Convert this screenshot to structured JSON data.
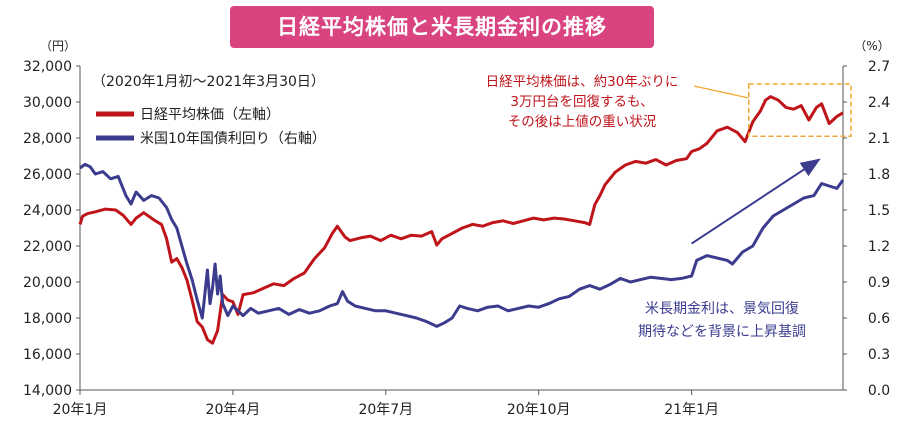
{
  "chart_data": {
    "type": "line",
    "title": "日経平均株価と米長期金利の推移",
    "subtitle": "（2020年1月初～2021年3月30日）",
    "left_unit": "（円）",
    "right_unit": "（%）",
    "left_ylim": [
      14000,
      32000
    ],
    "left_ticks": [
      "14,000",
      "16,000",
      "18,000",
      "20,000",
      "22,000",
      "24,000",
      "26,000",
      "28,000",
      "30,000",
      "32,000"
    ],
    "right_ylim": [
      0.0,
      2.7
    ],
    "right_ticks": [
      "0.0",
      "0.3",
      "0.6",
      "0.9",
      "1.2",
      "1.5",
      "1.8",
      "2.1",
      "2.4",
      "2.7"
    ],
    "x_labels": [
      "20年1月",
      "20年4月",
      "20年7月",
      "20年10月",
      "21年1月"
    ],
    "x_label_months": [
      0,
      3,
      6,
      9,
      12
    ],
    "x_max_month": 14.97,
    "grid": false,
    "legend_position": "top-left",
    "series": [
      {
        "name": "日経平均株価（左軸）",
        "axis": "left",
        "color": "#c0141b",
        "points": [
          [
            0.0,
            23200
          ],
          [
            0.05,
            23650
          ],
          [
            0.15,
            23800
          ],
          [
            0.3,
            23900
          ],
          [
            0.5,
            24050
          ],
          [
            0.7,
            24000
          ],
          [
            0.85,
            23700
          ],
          [
            1.0,
            23200
          ],
          [
            1.1,
            23550
          ],
          [
            1.25,
            23850
          ],
          [
            1.45,
            23450
          ],
          [
            1.6,
            23200
          ],
          [
            1.7,
            22400
          ],
          [
            1.8,
            21100
          ],
          [
            1.9,
            21300
          ],
          [
            2.0,
            20800
          ],
          [
            2.1,
            20100
          ],
          [
            2.2,
            19000
          ],
          [
            2.3,
            17800
          ],
          [
            2.4,
            17500
          ],
          [
            2.5,
            16800
          ],
          [
            2.6,
            16600
          ],
          [
            2.7,
            17300
          ],
          [
            2.8,
            19300
          ],
          [
            2.9,
            19000
          ],
          [
            3.0,
            18900
          ],
          [
            3.1,
            18200
          ],
          [
            3.2,
            19300
          ],
          [
            3.4,
            19400
          ],
          [
            3.6,
            19650
          ],
          [
            3.8,
            19900
          ],
          [
            4.0,
            19800
          ],
          [
            4.2,
            20200
          ],
          [
            4.4,
            20500
          ],
          [
            4.6,
            21300
          ],
          [
            4.8,
            21900
          ],
          [
            4.95,
            22700
          ],
          [
            5.05,
            23100
          ],
          [
            5.2,
            22500
          ],
          [
            5.3,
            22300
          ],
          [
            5.5,
            22450
          ],
          [
            5.7,
            22550
          ],
          [
            5.9,
            22300
          ],
          [
            6.1,
            22600
          ],
          [
            6.3,
            22400
          ],
          [
            6.5,
            22600
          ],
          [
            6.7,
            22550
          ],
          [
            6.9,
            22800
          ],
          [
            7.0,
            22050
          ],
          [
            7.1,
            22400
          ],
          [
            7.3,
            22700
          ],
          [
            7.5,
            23000
          ],
          [
            7.7,
            23200
          ],
          [
            7.9,
            23100
          ],
          [
            8.1,
            23300
          ],
          [
            8.3,
            23400
          ],
          [
            8.5,
            23250
          ],
          [
            8.7,
            23400
          ],
          [
            8.9,
            23550
          ],
          [
            9.1,
            23450
          ],
          [
            9.3,
            23550
          ],
          [
            9.5,
            23500
          ],
          [
            9.7,
            23400
          ],
          [
            9.9,
            23300
          ],
          [
            10.0,
            23200
          ],
          [
            10.1,
            24300
          ],
          [
            10.2,
            24800
          ],
          [
            10.3,
            25400
          ],
          [
            10.5,
            26100
          ],
          [
            10.7,
            26500
          ],
          [
            10.9,
            26700
          ],
          [
            11.1,
            26600
          ],
          [
            11.3,
            26800
          ],
          [
            11.5,
            26500
          ],
          [
            11.7,
            26750
          ],
          [
            11.9,
            26850
          ],
          [
            12.0,
            27250
          ],
          [
            12.15,
            27400
          ],
          [
            12.3,
            27700
          ],
          [
            12.5,
            28400
          ],
          [
            12.7,
            28600
          ],
          [
            12.9,
            28300
          ],
          [
            13.05,
            27800
          ],
          [
            13.2,
            28900
          ],
          [
            13.35,
            29500
          ],
          [
            13.45,
            30100
          ],
          [
            13.55,
            30300
          ],
          [
            13.7,
            30100
          ],
          [
            13.85,
            29700
          ],
          [
            14.0,
            29600
          ],
          [
            14.15,
            29800
          ],
          [
            14.3,
            29000
          ],
          [
            14.45,
            29700
          ],
          [
            14.55,
            29900
          ],
          [
            14.7,
            28800
          ],
          [
            14.85,
            29200
          ],
          [
            14.97,
            29400
          ]
        ]
      },
      {
        "name": "米国10年国債利回り（右軸）",
        "axis": "right",
        "color": "#3b3c8e",
        "points": [
          [
            0.0,
            1.85
          ],
          [
            0.1,
            1.88
          ],
          [
            0.2,
            1.86
          ],
          [
            0.3,
            1.8
          ],
          [
            0.45,
            1.82
          ],
          [
            0.6,
            1.76
          ],
          [
            0.75,
            1.78
          ],
          [
            0.9,
            1.62
          ],
          [
            1.0,
            1.55
          ],
          [
            1.1,
            1.65
          ],
          [
            1.25,
            1.58
          ],
          [
            1.4,
            1.62
          ],
          [
            1.55,
            1.6
          ],
          [
            1.7,
            1.52
          ],
          [
            1.8,
            1.42
          ],
          [
            1.9,
            1.35
          ],
          [
            2.0,
            1.2
          ],
          [
            2.1,
            1.05
          ],
          [
            2.2,
            0.92
          ],
          [
            2.3,
            0.75
          ],
          [
            2.4,
            0.6
          ],
          [
            2.5,
            1.0
          ],
          [
            2.55,
            0.72
          ],
          [
            2.6,
            0.85
          ],
          [
            2.65,
            1.05
          ],
          [
            2.7,
            0.8
          ],
          [
            2.75,
            0.95
          ],
          [
            2.8,
            0.72
          ],
          [
            2.9,
            0.62
          ],
          [
            3.0,
            0.7
          ],
          [
            3.1,
            0.66
          ],
          [
            3.2,
            0.62
          ],
          [
            3.35,
            0.68
          ],
          [
            3.5,
            0.64
          ],
          [
            3.7,
            0.66
          ],
          [
            3.9,
            0.68
          ],
          [
            4.1,
            0.63
          ],
          [
            4.3,
            0.67
          ],
          [
            4.5,
            0.64
          ],
          [
            4.7,
            0.66
          ],
          [
            4.9,
            0.7
          ],
          [
            5.05,
            0.72
          ],
          [
            5.15,
            0.82
          ],
          [
            5.25,
            0.74
          ],
          [
            5.4,
            0.7
          ],
          [
            5.6,
            0.68
          ],
          [
            5.8,
            0.66
          ],
          [
            6.0,
            0.66
          ],
          [
            6.2,
            0.64
          ],
          [
            6.4,
            0.62
          ],
          [
            6.6,
            0.6
          ],
          [
            6.8,
            0.57
          ],
          [
            7.0,
            0.53
          ],
          [
            7.15,
            0.56
          ],
          [
            7.3,
            0.6
          ],
          [
            7.45,
            0.7
          ],
          [
            7.6,
            0.68
          ],
          [
            7.8,
            0.66
          ],
          [
            8.0,
            0.69
          ],
          [
            8.2,
            0.7
          ],
          [
            8.4,
            0.66
          ],
          [
            8.6,
            0.68
          ],
          [
            8.8,
            0.7
          ],
          [
            9.0,
            0.69
          ],
          [
            9.2,
            0.72
          ],
          [
            9.4,
            0.76
          ],
          [
            9.6,
            0.78
          ],
          [
            9.8,
            0.84
          ],
          [
            10.0,
            0.87
          ],
          [
            10.2,
            0.84
          ],
          [
            10.4,
            0.88
          ],
          [
            10.6,
            0.93
          ],
          [
            10.8,
            0.9
          ],
          [
            11.0,
            0.92
          ],
          [
            11.2,
            0.94
          ],
          [
            11.4,
            0.93
          ],
          [
            11.6,
            0.92
          ],
          [
            11.8,
            0.93
          ],
          [
            12.0,
            0.95
          ],
          [
            12.1,
            1.08
          ],
          [
            12.3,
            1.12
          ],
          [
            12.5,
            1.1
          ],
          [
            12.7,
            1.08
          ],
          [
            12.8,
            1.05
          ],
          [
            12.9,
            1.1
          ],
          [
            13.0,
            1.15
          ],
          [
            13.2,
            1.2
          ],
          [
            13.4,
            1.35
          ],
          [
            13.6,
            1.45
          ],
          [
            13.8,
            1.5
          ],
          [
            14.0,
            1.55
          ],
          [
            14.2,
            1.6
          ],
          [
            14.4,
            1.62
          ],
          [
            14.55,
            1.72
          ],
          [
            14.7,
            1.7
          ],
          [
            14.85,
            1.68
          ],
          [
            14.97,
            1.75
          ]
        ]
      }
    ],
    "annotations": [
      {
        "text_lines": [
          "日経平均株価は、約30年ぶりに",
          "3万円台を回復するも、",
          "その後は上値の重い状況"
        ],
        "color": "#c0141b"
      },
      {
        "text_lines": [
          "米長期金利は、景気回復",
          "期待などを背景に上昇基調"
        ],
        "color": "#3b3c8e"
      }
    ],
    "highlight_box": {
      "x_range": [
        13.2,
        14.97
      ],
      "y_range": [
        28100,
        31000
      ],
      "color": "#f0a830"
    },
    "trend_arrow": {
      "from": [
        12.0,
        1.22
      ],
      "to": [
        14.5,
        1.92
      ],
      "color": "#3b3c8e"
    }
  }
}
